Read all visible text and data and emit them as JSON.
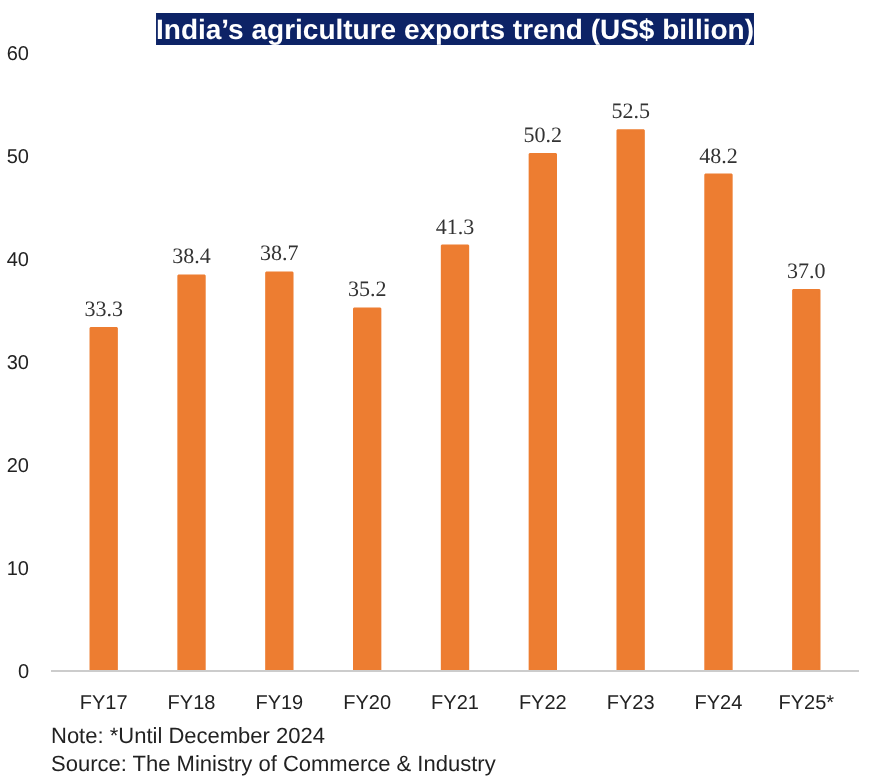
{
  "chart_data": {
    "type": "bar",
    "title": "India’s agriculture exports trend (US$ billion)",
    "categories": [
      "FY17",
      "FY18",
      "FY19",
      "FY20",
      "FY21",
      "FY22",
      "FY23",
      "FY24",
      "FY25*"
    ],
    "values": [
      33.3,
      38.4,
      38.7,
      35.2,
      41.3,
      50.2,
      52.5,
      48.2,
      37.0
    ],
    "value_labels": [
      "33.3",
      "38.4",
      "38.7",
      "35.2",
      "41.3",
      "50.2",
      "52.5",
      "48.2",
      "37.0"
    ],
    "color": "#ed7d31",
    "ylim": [
      0,
      60
    ],
    "yticks": [
      0,
      10,
      20,
      30,
      40,
      50,
      60
    ],
    "grid": false,
    "annotations": [
      "Note: *Until December 2024",
      "Source: The Ministry of Commerce & Industry"
    ]
  }
}
